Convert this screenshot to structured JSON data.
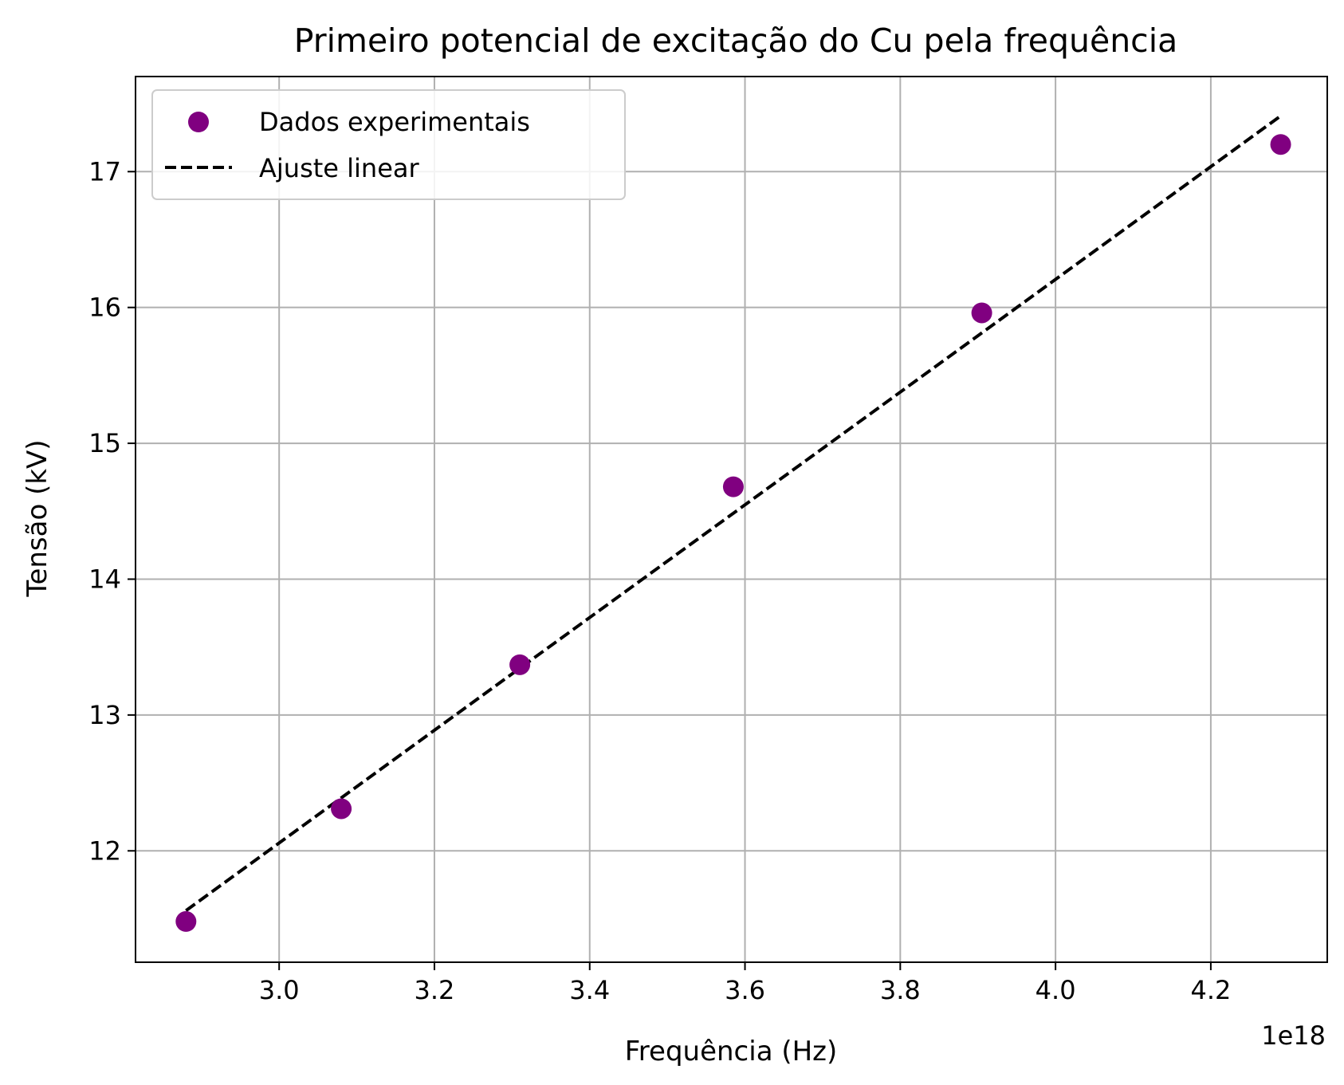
{
  "chart_data": {
    "type": "scatter",
    "title": "Primeiro potencial de excitação do Cu pela frequência",
    "xlabel": "Frequência (Hz)",
    "ylabel": "Tensão (kV)",
    "x_offset_label": "1e18",
    "xlim": [
      2.815,
      4.35
    ],
    "ylim": [
      11.18,
      17.7
    ],
    "grid": true,
    "legend_position": "upper-left",
    "x_ticks": [
      3.0,
      3.2,
      3.4,
      3.6,
      3.8,
      4.0,
      4.2
    ],
    "x_tick_labels": [
      "3.0",
      "3.2",
      "3.4",
      "3.6",
      "3.8",
      "4.0",
      "4.2"
    ],
    "y_ticks": [
      12,
      13,
      14,
      15,
      16,
      17
    ],
    "y_tick_labels": [
      "12",
      "13",
      "14",
      "15",
      "16",
      "17"
    ],
    "series": [
      {
        "name": "Dados experimentais",
        "kind": "scatter",
        "color": "#800080",
        "x": [
          2.88,
          3.08,
          3.31,
          3.585,
          3.905,
          4.29
        ],
        "y": [
          11.48,
          12.31,
          13.37,
          14.68,
          15.96,
          17.2
        ]
      },
      {
        "name": "Ajuste linear",
        "kind": "line",
        "style": "dashed",
        "color": "#000000",
        "x": [
          2.88,
          4.29
        ],
        "y": [
          11.56,
          17.41
        ]
      }
    ]
  }
}
